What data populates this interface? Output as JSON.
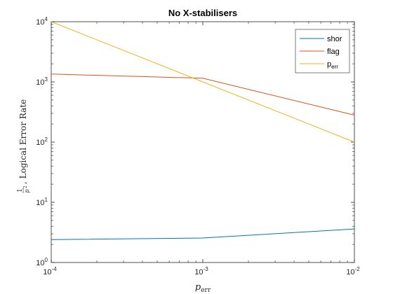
{
  "chart_data": {
    "type": "line",
    "title": "No X-stabilisers",
    "xlabel": "p_err",
    "ylabel": "1/p^2, Logical Error Rate",
    "xscale": "log",
    "yscale": "log",
    "xlim": [
      0.0001,
      0.01
    ],
    "ylim": [
      1,
      10000
    ],
    "x_ticks": [
      0.0001,
      0.001,
      0.01
    ],
    "x_tick_labels": [
      {
        "base": "10",
        "exp": "-4"
      },
      {
        "base": "10",
        "exp": "-3"
      },
      {
        "base": "10",
        "exp": "-2"
      }
    ],
    "y_ticks": [
      1,
      10,
      100,
      1000,
      10000
    ],
    "y_tick_labels": [
      {
        "base": "10",
        "exp": "0"
      },
      {
        "base": "10",
        "exp": "1"
      },
      {
        "base": "10",
        "exp": "2"
      },
      {
        "base": "10",
        "exp": "3"
      },
      {
        "base": "10",
        "exp": "4"
      }
    ],
    "grid": false,
    "legend_position": "top-right",
    "series": [
      {
        "name": "shor",
        "color": "#0072BD",
        "x": [
          0.0001,
          0.001,
          0.01
        ],
        "y": [
          2.4,
          2.55,
          3.6
        ]
      },
      {
        "name": "flag",
        "color": "#D95319",
        "x": [
          0.0001,
          0.001,
          0.01
        ],
        "y": [
          1350,
          1150,
          280
        ]
      },
      {
        "name": "p",
        "name_sub": "err",
        "color": "#EDB120",
        "x": [
          0.0001,
          0.001,
          0.01
        ],
        "y": [
          10000,
          1000,
          100
        ]
      }
    ]
  }
}
